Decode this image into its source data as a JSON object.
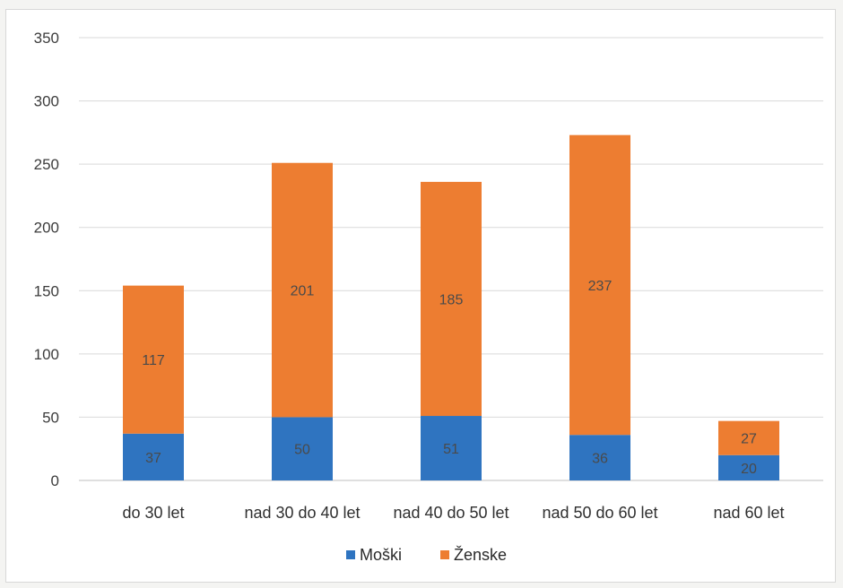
{
  "chart_data": {
    "type": "bar",
    "stacked": true,
    "categories": [
      "do 30 let",
      "nad 30 do 40 let",
      "nad 40 do 50 let",
      "nad 50 do 60 let",
      "nad 60 let"
    ],
    "series": [
      {
        "name": "Moški",
        "color": "#2f74c0",
        "values": [
          37,
          50,
          51,
          36,
          20
        ]
      },
      {
        "name": "Ženske",
        "color": "#ed7d31",
        "values": [
          117,
          201,
          185,
          237,
          27
        ]
      }
    ],
    "ylim": [
      0,
      350
    ],
    "yticks": [
      0,
      50,
      100,
      150,
      200,
      250,
      300,
      350
    ],
    "grid": true,
    "legend_position": "bottom"
  }
}
